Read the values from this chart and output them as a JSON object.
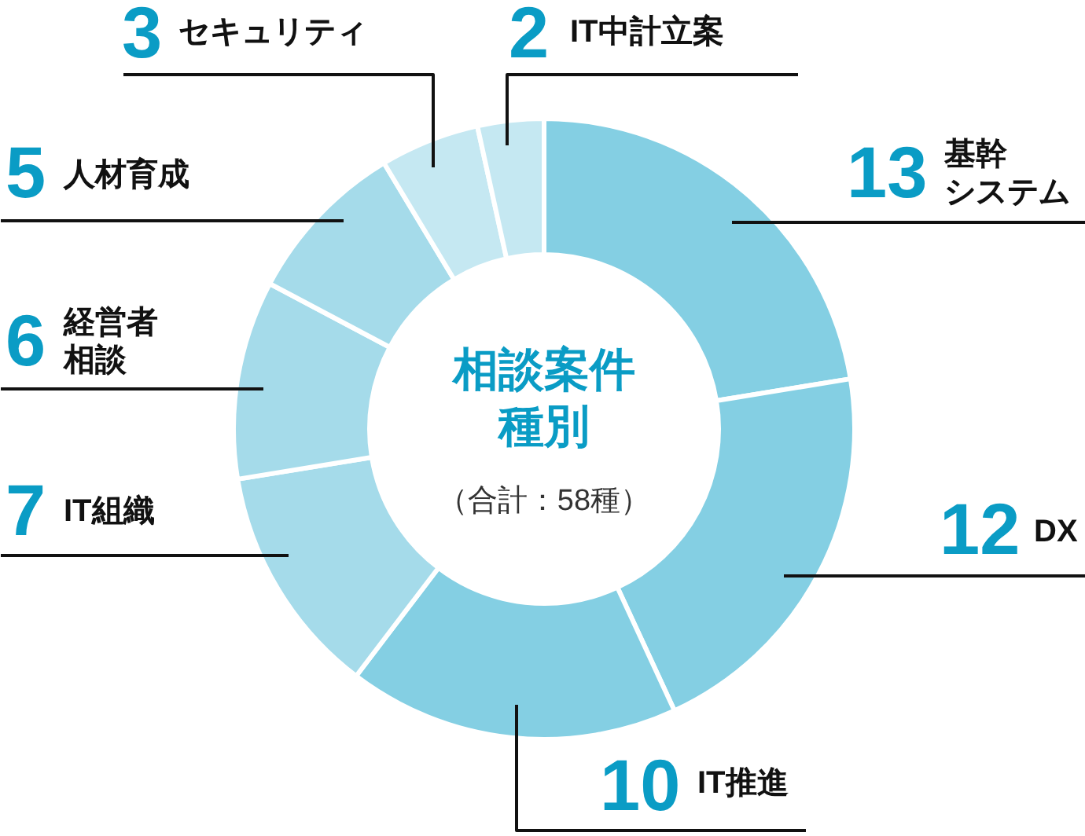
{
  "chart_data": {
    "type": "donut",
    "title": "相談案件種別",
    "subtitle": "（合計：58種）",
    "categories": [
      "基幹システム",
      "DX",
      "IT推進",
      "IT組織",
      "経営者相談",
      "人材育成",
      "セキュリティ",
      "IT中計立案"
    ],
    "values": [
      13,
      12,
      10,
      7,
      6,
      5,
      3,
      2
    ],
    "colors": [
      "#84cfe3",
      "#84cfe3",
      "#84cfe3",
      "#a5dbea",
      "#a5dbea",
      "#a5dbea",
      "#c5e8f2",
      "#c5e8f2"
    ],
    "data_labels": true
  }
}
